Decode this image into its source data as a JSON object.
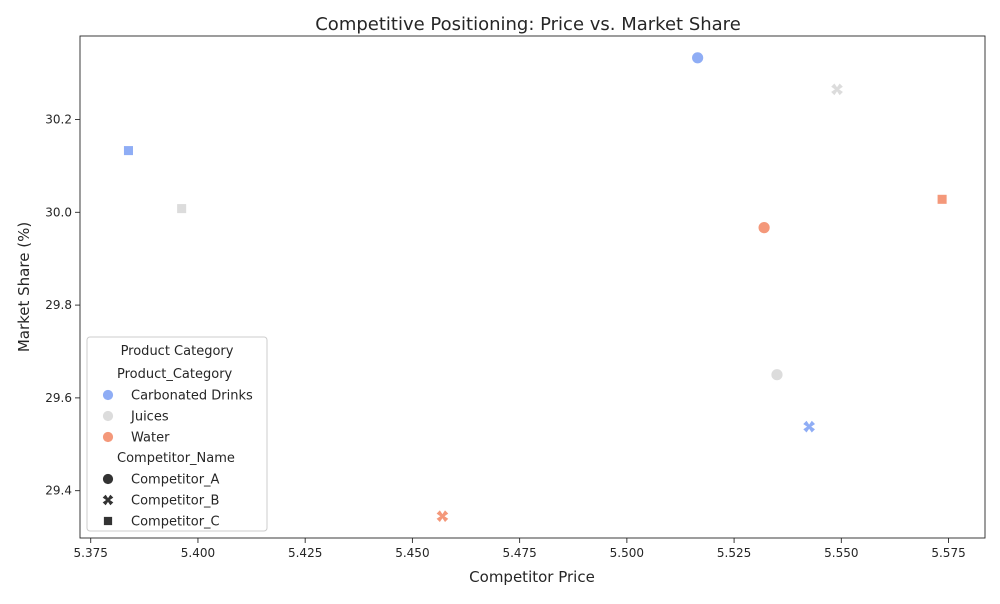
{
  "chart_data": {
    "type": "scatter",
    "title": "Competitive Positioning: Price vs. Market Share",
    "xlabel": "Competitor Price",
    "ylabel": "Market Share (%)",
    "xlim": [
      5.3725,
      5.5835
    ],
    "ylim": [
      29.298,
      30.38
    ],
    "x_ticks": [
      5.375,
      5.4,
      5.425,
      5.45,
      5.475,
      5.5,
      5.525,
      5.55,
      5.575
    ],
    "x_tick_labels": [
      "5.375",
      "5.400",
      "5.425",
      "5.450",
      "5.475",
      "5.500",
      "5.525",
      "5.550",
      "5.575"
    ],
    "y_ticks": [
      29.4,
      29.6,
      29.8,
      30.0,
      30.2
    ],
    "y_tick_labels": [
      "29.4",
      "29.6",
      "29.8",
      "30.0",
      "30.2"
    ],
    "grid": false,
    "legend": {
      "title": "Product Category",
      "placement": "lower-left",
      "hue_title": "Product_Category",
      "style_title": "Competitor_Name",
      "hue_entries": [
        {
          "label": "Carbonated Drinks",
          "color": "#8fadf5"
        },
        {
          "label": "Juices",
          "color": "#dcdcdc"
        },
        {
          "label": "Water",
          "color": "#f4987a"
        }
      ],
      "style_entries": [
        {
          "label": "Competitor_A",
          "marker": "circle"
        },
        {
          "label": "Competitor_B",
          "marker": "x"
        },
        {
          "label": "Competitor_C",
          "marker": "square"
        }
      ]
    },
    "points": [
      {
        "x": 5.5165,
        "y": 30.333,
        "category": "Carbonated Drinks",
        "competitor": "Competitor_A"
      },
      {
        "x": 5.5425,
        "y": 29.538,
        "category": "Carbonated Drinks",
        "competitor": "Competitor_B"
      },
      {
        "x": 5.3838,
        "y": 30.133,
        "category": "Carbonated Drinks",
        "competitor": "Competitor_C"
      },
      {
        "x": 5.535,
        "y": 29.65,
        "category": "Juices",
        "competitor": "Competitor_A"
      },
      {
        "x": 5.549,
        "y": 30.265,
        "category": "Juices",
        "competitor": "Competitor_B"
      },
      {
        "x": 5.3962,
        "y": 30.008,
        "category": "Juices",
        "competitor": "Competitor_C"
      },
      {
        "x": 5.532,
        "y": 29.967,
        "category": "Water",
        "competitor": "Competitor_A"
      },
      {
        "x": 5.457,
        "y": 29.345,
        "category": "Water",
        "competitor": "Competitor_B"
      },
      {
        "x": 5.5735,
        "y": 30.028,
        "category": "Water",
        "competitor": "Competitor_C"
      }
    ]
  }
}
